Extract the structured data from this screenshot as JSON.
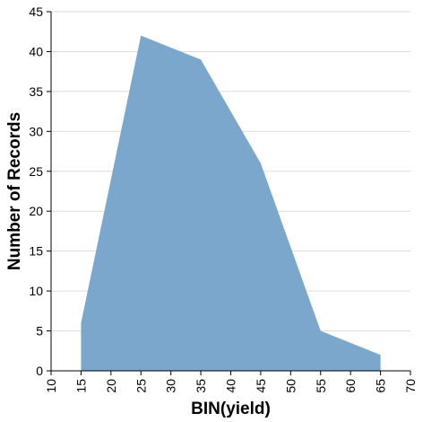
{
  "chart_data": {
    "type": "area",
    "title": "",
    "xlabel": "BIN(yield)",
    "ylabel": "Number of Records",
    "x": [
      15,
      25,
      35,
      45,
      55,
      65
    ],
    "series": [
      {
        "values": [
          6,
          42,
          39,
          26,
          5,
          2
        ]
      }
    ],
    "xlim": [
      10,
      70
    ],
    "ylim": [
      0,
      45
    ],
    "x_ticks": [
      "10",
      "15",
      "20",
      "25",
      "30",
      "35",
      "40",
      "45",
      "50",
      "55",
      "60",
      "65",
      "70"
    ],
    "y_ticks": [
      "0",
      "5",
      "10",
      "15",
      "20",
      "25",
      "30",
      "35",
      "40",
      "45"
    ],
    "grid": "horizontal",
    "legend": "none",
    "color": "#7ba7cc"
  }
}
